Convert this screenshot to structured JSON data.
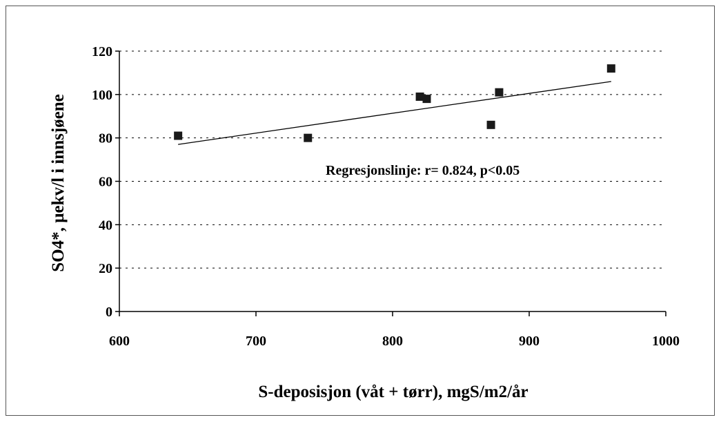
{
  "chart_data": {
    "type": "scatter",
    "xlabel": "S-deposisjon (våt + tørr), mgS/m2/år",
    "ylabel": "SO4*, µekv/l i innsjøene",
    "xlim": [
      600,
      1000
    ],
    "ylim": [
      0,
      120
    ],
    "x_ticks": [
      "600",
      "700",
      "800",
      "900",
      "1000"
    ],
    "y_ticks": [
      "0",
      "20",
      "40",
      "60",
      "80",
      "100",
      "120"
    ],
    "grid": "horizontal-dotted",
    "points": [
      {
        "x": 643,
        "y": 81
      },
      {
        "x": 738,
        "y": 80
      },
      {
        "x": 820,
        "y": 99
      },
      {
        "x": 825,
        "y": 98
      },
      {
        "x": 872,
        "y": 86
      },
      {
        "x": 878,
        "y": 101
      },
      {
        "x": 960,
        "y": 112
      }
    ],
    "regression_line": {
      "x": [
        643,
        960
      ],
      "y": [
        77,
        106
      ]
    },
    "annotation": "Regresjonslinje: r= 0.824,  p<0.05",
    "marker_color": "#1a1a1a",
    "line_color": "#000000"
  }
}
